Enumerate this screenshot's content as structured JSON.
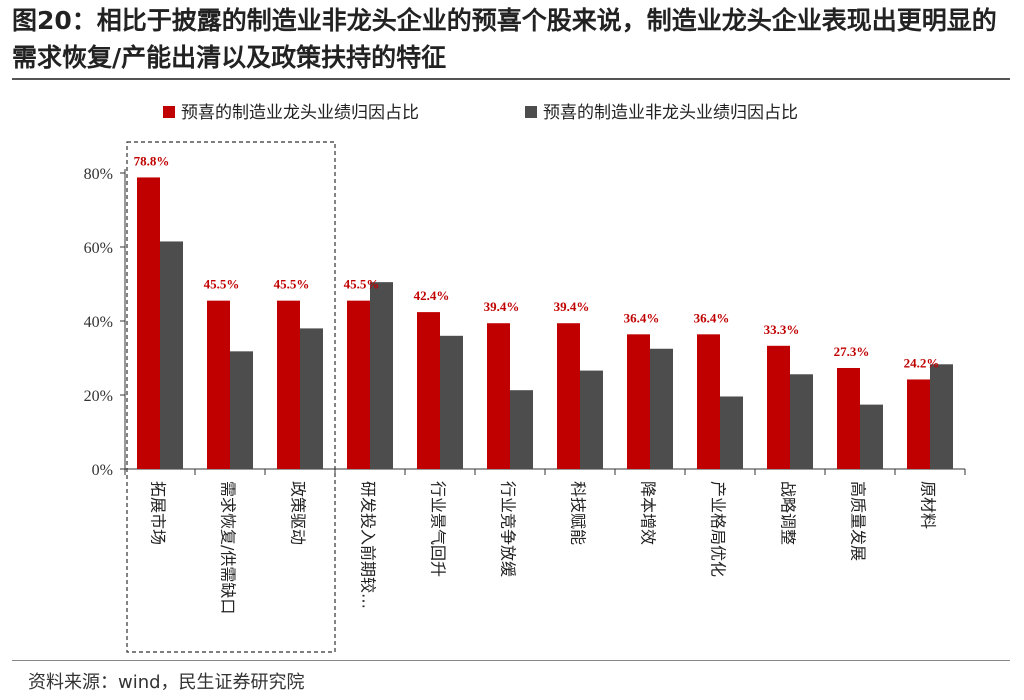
{
  "header": {
    "title": "图20：相比于披露的制造业非龙头企业的预喜个股来说，制造业龙头企业表现出更明显的需求恢复/产能出清以及政策扶持的特征"
  },
  "footer": {
    "source": "资料来源：wind，民生证券研究院"
  },
  "chart_data": {
    "type": "bar",
    "categories": [
      "拓展市场",
      "需求恢复/供需缺口",
      "政策驱动",
      "研发投入前期较…",
      "行业景气回升",
      "行业竞争放缓",
      "科技赋能",
      "降本增效",
      "产业格局优化",
      "战略调整",
      "高质量发展",
      "原材料"
    ],
    "series": [
      {
        "name": "预喜的制造业龙头业绩归因占比",
        "color": "#c00000",
        "values": [
          78.8,
          45.5,
          45.5,
          45.5,
          42.4,
          39.4,
          39.4,
          36.4,
          36.4,
          33.3,
          27.3,
          24.2
        ],
        "labels": [
          "78.8%",
          "45.5%",
          "45.5%",
          "45.5%",
          "42.4%",
          "39.4%",
          "39.4%",
          "36.4%",
          "36.4%",
          "33.3%",
          "27.3%",
          "24.2%"
        ]
      },
      {
        "name": "预喜的制造业非龙头业绩归因占比",
        "color": "#4d4d4d",
        "values": [
          61.5,
          31.8,
          38.0,
          50.5,
          36.0,
          21.3,
          26.6,
          32.5,
          19.6,
          25.6,
          17.4,
          28.3
        ]
      }
    ],
    "ylim": [
      0,
      80
    ],
    "yticks": [
      0,
      20,
      40,
      60,
      80
    ],
    "ytick_labels": [
      "0%",
      "20%",
      "40%",
      "60%",
      "80%"
    ],
    "legend_position": "top",
    "grid": false,
    "highlight_box": "categories 1-3 (dashed outline)"
  }
}
